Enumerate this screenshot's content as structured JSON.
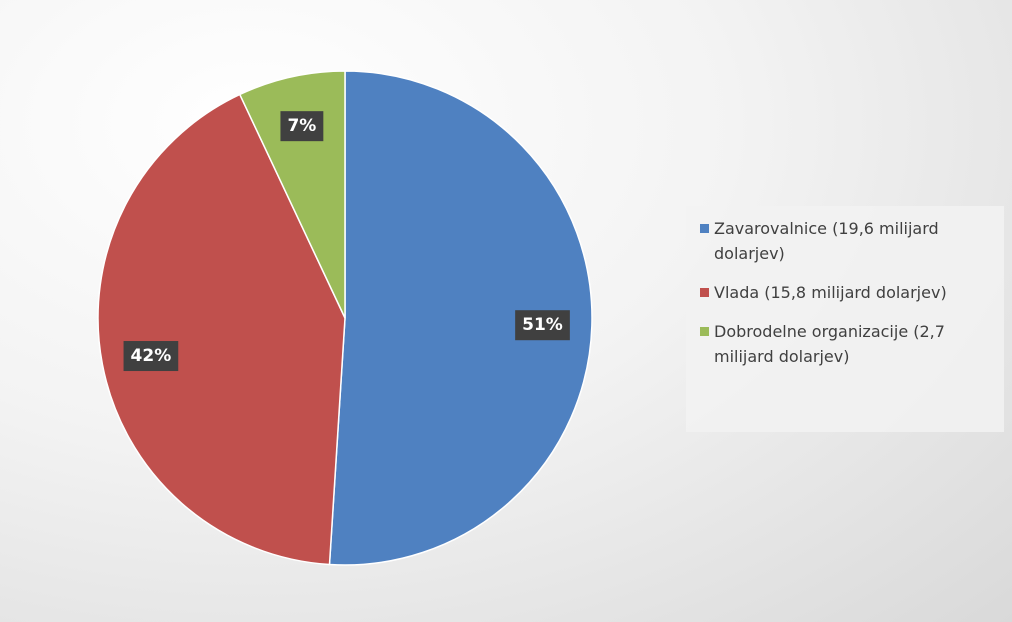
{
  "chart_data": {
    "type": "pie",
    "categories": [
      "Zavarovalnice (19,6 milijard dolarjev)",
      "Vlada (15,8 milijard dolarjev)",
      "Dobrodelne organizacije (2,7 milijard dolarjev)"
    ],
    "values": [
      51,
      42,
      7
    ],
    "value_labels": [
      "51%",
      "42%",
      "7%"
    ],
    "colors": [
      "#4f81c1",
      "#c0504d",
      "#9bbb59"
    ],
    "legend": "right"
  }
}
